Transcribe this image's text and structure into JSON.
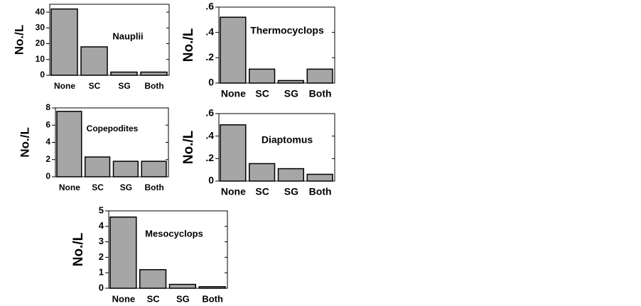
{
  "chart_data": [
    {
      "type": "bar",
      "title": "Nauplii",
      "ylabel": "No./L",
      "categories": [
        "None",
        "SC",
        "SG",
        "Both"
      ],
      "values": [
        42,
        18,
        2,
        2
      ],
      "color": "#a6a6a6",
      "ylim": [
        0,
        45
      ],
      "yticks": [
        0,
        10,
        20,
        30,
        40
      ]
    },
    {
      "type": "bar",
      "title": "Thermocyclops",
      "ylabel": "No./L",
      "categories": [
        "None",
        "SC",
        "SG",
        "Both"
      ],
      "values": [
        0.52,
        0.11,
        0.02,
        0.11
      ],
      "color": "#a6a6a6",
      "ylim": [
        0,
        0.6
      ],
      "yticks": [
        0,
        {
          "value": 0.2,
          "label": ".2"
        },
        {
          "value": 0.4,
          "label": ".4"
        },
        {
          "value": 0.6,
          "label": ".6"
        }
      ]
    },
    {
      "type": "bar",
      "title": "Copepodites",
      "ylabel": "No./L",
      "categories": [
        "None",
        "SC",
        "SG",
        "Both"
      ],
      "values": [
        7.6,
        2.3,
        1.8,
        1.8
      ],
      "color": "#a6a6a6",
      "ylim": [
        0,
        8
      ],
      "yticks": [
        0,
        2,
        4,
        6,
        8
      ]
    },
    {
      "type": "bar",
      "title": "Diaptomus",
      "ylabel": "No./L",
      "categories": [
        "None",
        "SC",
        "SG",
        "Both"
      ],
      "values": [
        0.5,
        0.155,
        0.11,
        0.06
      ],
      "color": "#a6a6a6",
      "ylim": [
        0,
        0.6
      ],
      "yticks": [
        0,
        {
          "value": 0.2,
          "label": ".2"
        },
        {
          "value": 0.4,
          "label": ".4"
        },
        {
          "value": 0.6,
          "label": ".6"
        }
      ]
    },
    {
      "type": "bar",
      "title": "Mesocyclops",
      "ylabel": "No./L",
      "categories": [
        "None",
        "SC",
        "SG",
        "Both"
      ],
      "values": [
        4.6,
        1.2,
        0.25,
        0.1
      ],
      "color": "#a6a6a6",
      "ylim": [
        0,
        5
      ],
      "yticks": [
        0,
        1,
        2,
        3,
        4,
        5
      ]
    }
  ]
}
